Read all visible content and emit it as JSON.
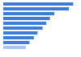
{
  "chart_data": {
    "type": "bar",
    "orientation": "horizontal",
    "categories": [
      null,
      null,
      null,
      null,
      null,
      null,
      null,
      null,
      null,
      null
    ],
    "values": [
      96,
      90,
      70,
      64,
      59,
      54,
      47,
      42,
      36,
      31
    ],
    "colors": [
      "#3d7dd8",
      "#3d7dd8",
      "#3d7dd8",
      "#3d7dd8",
      "#3d7dd8",
      "#3d7dd8",
      "#3d7dd8",
      "#3d7dd8",
      "#3d7dd8",
      "#a9c6ee"
    ],
    "xlim": [
      0,
      100
    ],
    "grid": false,
    "tick_labels": false
  }
}
